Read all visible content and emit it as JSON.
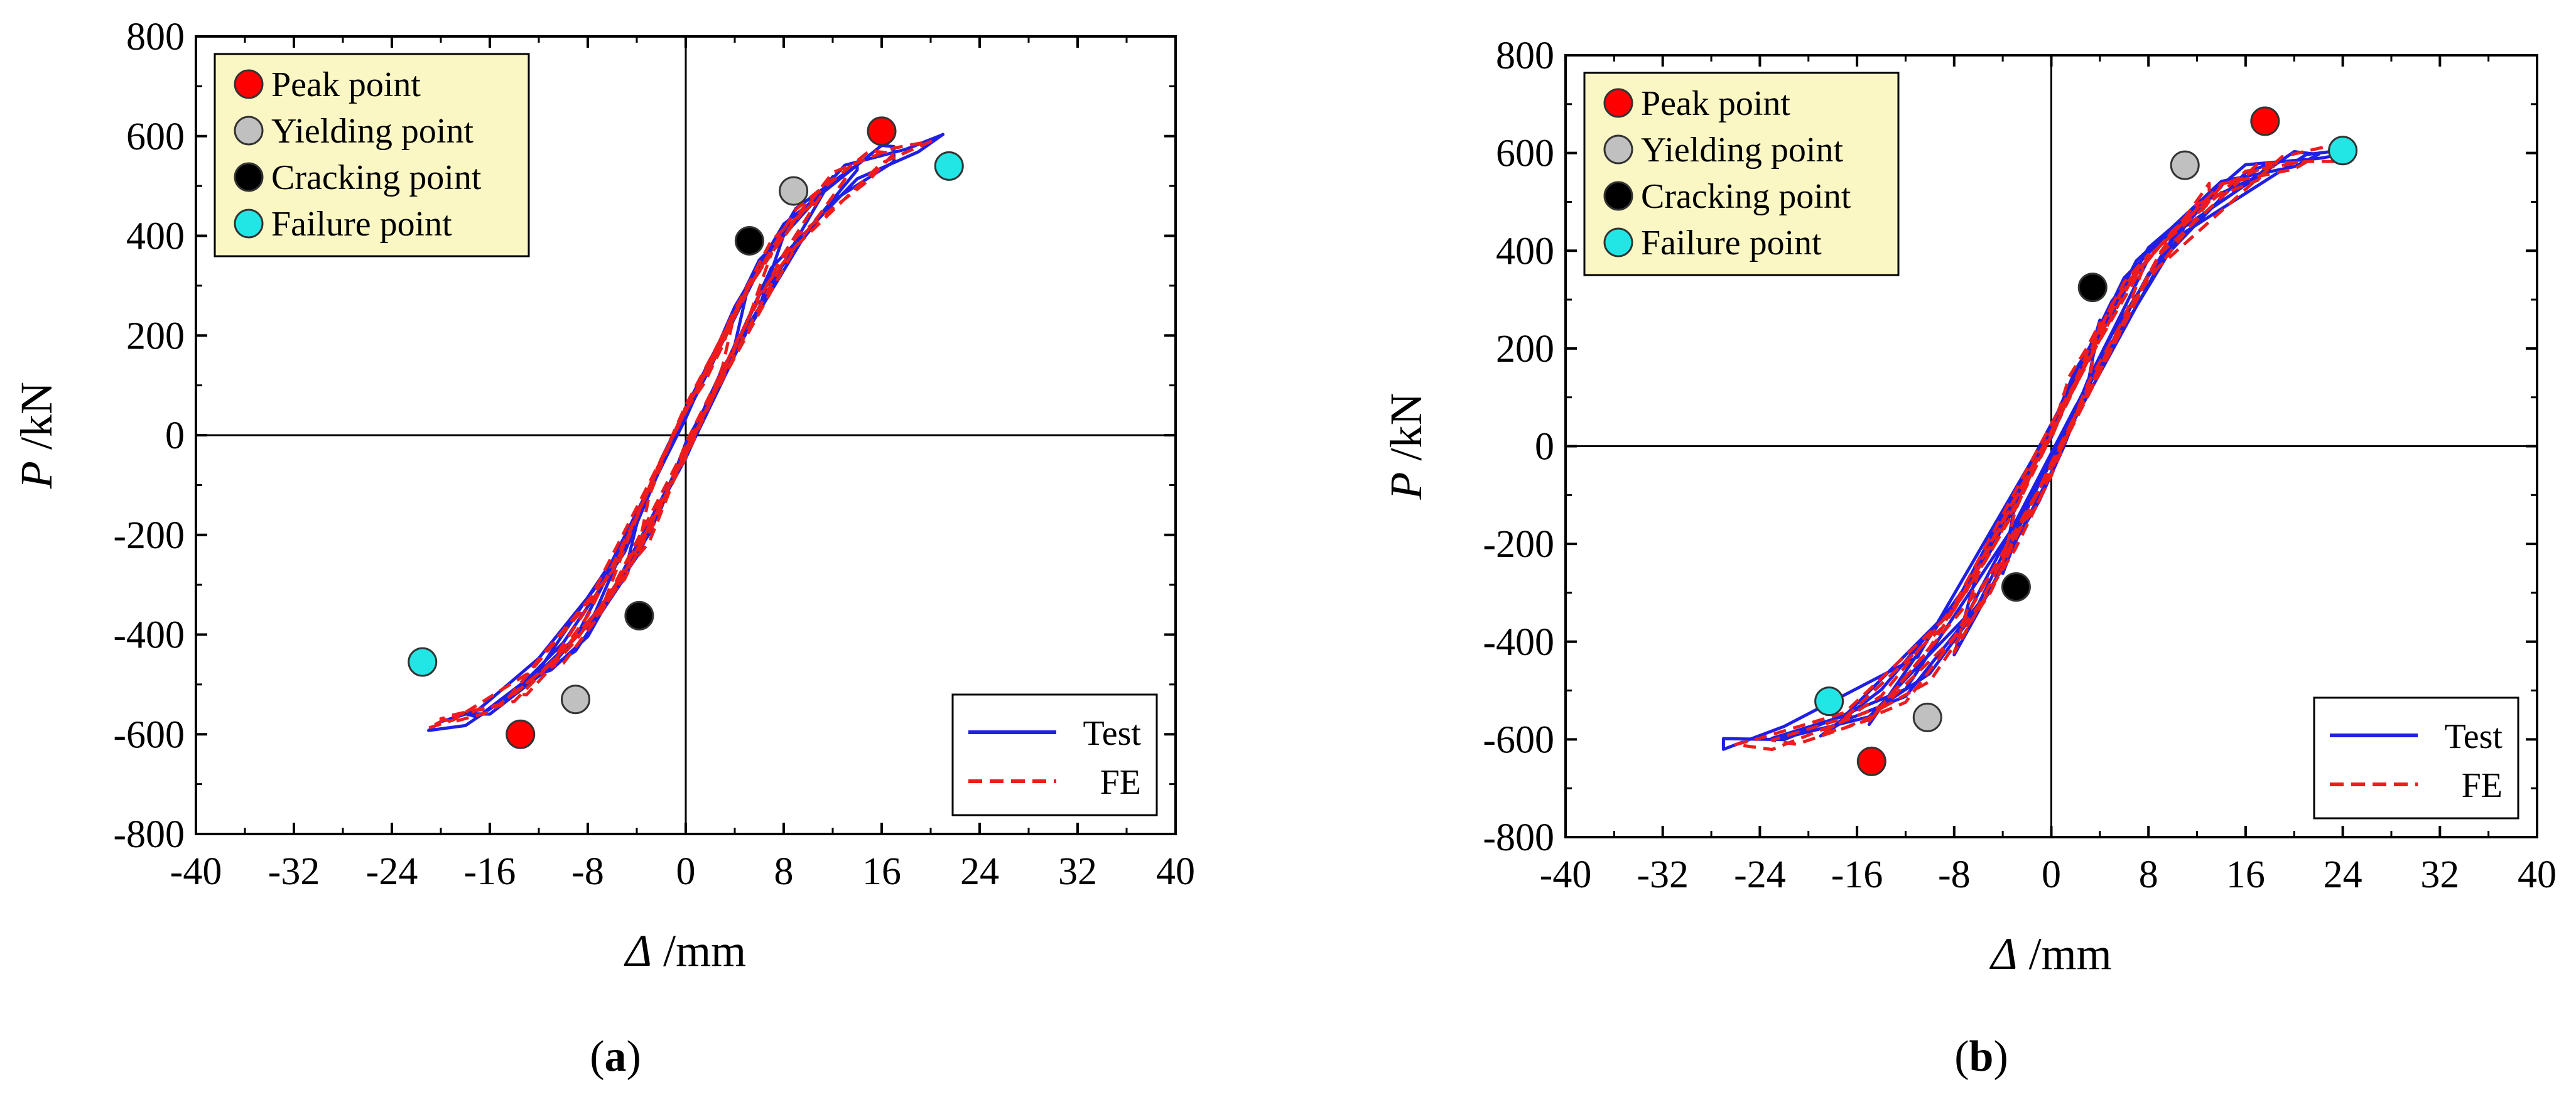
{
  "chart_data": [
    {
      "type": "line",
      "panel": "a",
      "caption": {
        "open": "(",
        "letter": "a",
        "close": ")"
      },
      "xlabel": {
        "symbol": "Δ",
        "unit": " /mm"
      },
      "ylabel": {
        "symbol": "P",
        "unit": " /kN"
      },
      "xlim": [
        -40,
        40
      ],
      "ylim": [
        -800,
        800
      ],
      "xticks": [
        -40,
        -32,
        -24,
        -16,
        -8,
        0,
        8,
        16,
        24,
        32,
        40
      ],
      "yticks": [
        -800,
        -600,
        -400,
        -200,
        0,
        200,
        400,
        600,
        800
      ],
      "legend_points": [
        {
          "label": "Peak point",
          "color": "#ff0000"
        },
        {
          "label": "Yielding point",
          "color": "#c0c0c0"
        },
        {
          "label": "Cracking point",
          "color": "#000000"
        },
        {
          "label": "Failure point",
          "color": "#22e6e6"
        }
      ],
      "legend_lines": [
        {
          "label": "Test",
          "color": "#1f1fe6",
          "dash": "solid"
        },
        {
          "label": "FE",
          "color": "#ee1c1c",
          "dash": "dashed"
        }
      ],
      "series": [
        {
          "name": "Test",
          "x": [
            0,
            2,
            4,
            5,
            4,
            2,
            0,
            -2,
            -4,
            -5,
            -4,
            -2,
            0,
            3,
            6,
            8,
            6,
            3,
            0,
            -3,
            -6,
            -8,
            -6,
            -3,
            0,
            4,
            8,
            11,
            12,
            9,
            5,
            0,
            -4,
            -8,
            -11,
            -12,
            -9,
            -5,
            0,
            5,
            9,
            13,
            14,
            14,
            10,
            5,
            0,
            -5,
            -9,
            -13,
            -15,
            -14,
            -10,
            -5,
            0,
            6,
            11,
            16,
            17,
            17,
            12,
            6,
            0,
            -6,
            -11,
            -16,
            -18,
            -17,
            -12,
            -6,
            0,
            7,
            13,
            18,
            21,
            21,
            19,
            14,
            7,
            0,
            -7,
            -13,
            -18,
            -21,
            -20,
            -17,
            -12,
            -6,
            0
          ]
        },
        {
          "name": "FE",
          "x": [
            0,
            1.5,
            3,
            4,
            3,
            1.5,
            0,
            -1.5,
            -3,
            -4,
            -3,
            -1.5,
            0,
            2.5,
            5,
            7,
            5,
            2.5,
            0,
            -2.5,
            -5,
            -7,
            -5,
            -2.5,
            0,
            4,
            7,
            10,
            11,
            8,
            4,
            0,
            -4,
            -7,
            -10,
            -11,
            -8,
            -4,
            0,
            5,
            9,
            12,
            13,
            11,
            6,
            0,
            -5,
            -9,
            -13,
            -14,
            -11,
            -6,
            0,
            5,
            10,
            15,
            17,
            15,
            9,
            2,
            -5,
            -11,
            -16,
            -19,
            -20,
            -15,
            -8,
            0,
            6,
            12,
            17,
            20,
            20,
            16,
            9,
            0,
            -7,
            -14,
            -19,
            -21,
            -19,
            -13,
            -6,
            0
          ]
        }
      ],
      "markers": [
        {
          "name": "peak-point-positive",
          "x": 16,
          "y": 610,
          "color": "#ff0000"
        },
        {
          "name": "peak-point-negative",
          "x": -13.5,
          "y": -600,
          "color": "#ff0000"
        },
        {
          "name": "yielding-point-positive",
          "x": 8.8,
          "y": 490,
          "color": "#c0c0c0"
        },
        {
          "name": "yielding-point-negative",
          "x": -9,
          "y": -530,
          "color": "#c0c0c0"
        },
        {
          "name": "cracking-point-positive",
          "x": 5.2,
          "y": 390,
          "color": "#000000"
        },
        {
          "name": "cracking-point-negative",
          "x": -3.8,
          "y": -362,
          "color": "#000000"
        },
        {
          "name": "failure-point-positive",
          "x": 21.5,
          "y": 540,
          "color": "#22e6e6"
        },
        {
          "name": "failure-point-negative",
          "x": -21.5,
          "y": -455,
          "color": "#22e6e6"
        }
      ]
    },
    {
      "type": "line",
      "panel": "b",
      "caption": {
        "open": "(",
        "letter": "b",
        "close": ")"
      },
      "xlabel": {
        "symbol": "Δ",
        "unit": " /mm"
      },
      "ylabel": {
        "symbol": "P",
        "unit": " /kN"
      },
      "xlim": [
        -40,
        40
      ],
      "ylim": [
        -800,
        800
      ],
      "xticks": [
        -40,
        -32,
        -24,
        -16,
        -8,
        0,
        8,
        16,
        24,
        32,
        40
      ],
      "yticks": [
        -800,
        -600,
        -400,
        -200,
        0,
        200,
        400,
        600,
        800
      ],
      "legend_points": [
        {
          "label": "Peak point",
          "color": "#ff0000"
        },
        {
          "label": "Yielding point",
          "color": "#c0c0c0"
        },
        {
          "label": "Cracking point",
          "color": "#000000"
        },
        {
          "label": "Failure point",
          "color": "#22e6e6"
        }
      ],
      "legend_lines": [
        {
          "label": "Test",
          "color": "#1f1fe6",
          "dash": "solid"
        },
        {
          "label": "FE",
          "color": "#ee1c1c",
          "dash": "dashed"
        }
      ],
      "series": [
        {
          "name": "Test",
          "x": [
            0,
            2,
            3.5,
            4,
            3,
            1,
            -1,
            -3,
            -4,
            -3,
            -1,
            0,
            3,
            6,
            8,
            6,
            3,
            0,
            -3,
            -6,
            -8,
            -6,
            -3,
            0,
            5,
            10,
            13,
            14,
            10,
            5,
            0,
            -5,
            -10,
            -14,
            -15,
            -11,
            -5,
            0,
            6,
            12,
            17,
            18,
            16,
            8,
            0,
            -6,
            -12,
            -17,
            -19,
            -14,
            -7,
            0,
            7,
            14,
            20,
            22,
            20,
            11,
            2,
            -7,
            -15,
            -21,
            -23,
            -17,
            -8,
            0,
            8,
            16,
            22,
            24,
            25,
            21,
            10,
            -2,
            -12,
            -22,
            -27,
            -27,
            -22,
            -11,
            0
          ]
        },
        {
          "name": "FE",
          "x": [
            0,
            1.5,
            3,
            4,
            3,
            1,
            -1,
            -3,
            -4,
            -3,
            -1,
            0,
            3,
            6,
            8,
            6,
            3,
            0,
            -3,
            -6,
            -8,
            -6,
            -3,
            0,
            5,
            10,
            13,
            13,
            9,
            4,
            0,
            -5,
            -10,
            -14,
            -15,
            -10,
            -5,
            0,
            6,
            12,
            17,
            18,
            14,
            7,
            0,
            -6,
            -12,
            -17,
            -19,
            -14,
            -7,
            0,
            7,
            14,
            20,
            21,
            17,
            9,
            0,
            -8,
            -15,
            -21,
            -23,
            -17,
            -9,
            0,
            8,
            16,
            21,
            24,
            24,
            19,
            8,
            -4,
            -14,
            -23,
            -26,
            -24,
            -17,
            -8,
            0
          ]
        }
      ],
      "markers": [
        {
          "name": "peak-point-positive",
          "x": 17.6,
          "y": 665,
          "color": "#ff0000"
        },
        {
          "name": "peak-point-negative",
          "x": -14.8,
          "y": -645,
          "color": "#ff0000"
        },
        {
          "name": "yielding-point-positive",
          "x": 11,
          "y": 575,
          "color": "#c0c0c0"
        },
        {
          "name": "yielding-point-negative",
          "x": -10.2,
          "y": -555,
          "color": "#c0c0c0"
        },
        {
          "name": "cracking-point-positive",
          "x": 3.4,
          "y": 325,
          "color": "#000000"
        },
        {
          "name": "cracking-point-negative",
          "x": -2.9,
          "y": -288,
          "color": "#000000"
        },
        {
          "name": "failure-point-positive",
          "x": 24,
          "y": 605,
          "color": "#22e6e6"
        },
        {
          "name": "failure-point-negative",
          "x": -18.3,
          "y": -522,
          "color": "#22e6e6"
        }
      ]
    }
  ]
}
